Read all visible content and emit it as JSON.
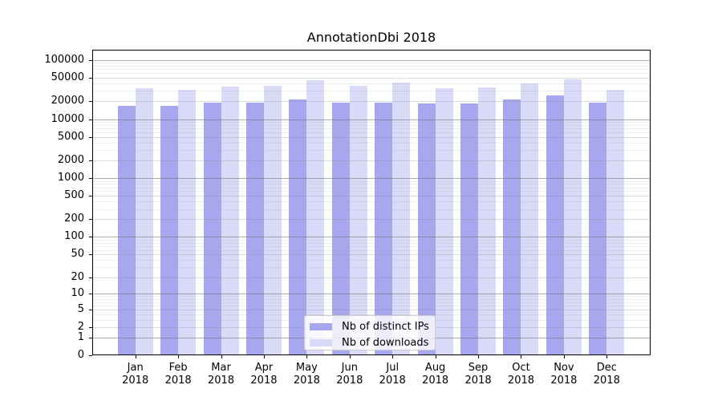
{
  "chart_data": {
    "type": "bar",
    "title": "AnnotationDbi 2018",
    "categories": [
      "Jan 2018",
      "Feb 2018",
      "Mar 2018",
      "Apr 2018",
      "May 2018",
      "Jun 2018",
      "Jul 2018",
      "Aug 2018",
      "Sep 2018",
      "Oct 2018",
      "Nov 2018",
      "Dec 2018"
    ],
    "series": [
      {
        "name": "Nb of distinct IPs",
        "color": "#a7a7f0",
        "values": [
          17000,
          16600,
          19100,
          18900,
          21400,
          19100,
          19100,
          18400,
          18300,
          21400,
          25200,
          19100
        ]
      },
      {
        "name": "Nb of downloads",
        "color": "#d9d9f8",
        "values": [
          33400,
          31800,
          35200,
          36400,
          45300,
          37000,
          41000,
          33500,
          34000,
          39900,
          47900,
          31600
        ]
      }
    ],
    "yscale": "log1p",
    "yticks": [
      0,
      1,
      2,
      5,
      10,
      20,
      50,
      100,
      200,
      500,
      1000,
      2000,
      5000,
      10000,
      20000,
      50000,
      100000
    ],
    "ylim": [
      0,
      150000
    ],
    "xlabel": "",
    "ylabel": "",
    "grid": "horizontal, major and minor, drawn over bars",
    "legend_position": "lower-center"
  },
  "colors": {
    "axis": "#000000",
    "text": "#000000",
    "legend_border": "#cccccc"
  }
}
